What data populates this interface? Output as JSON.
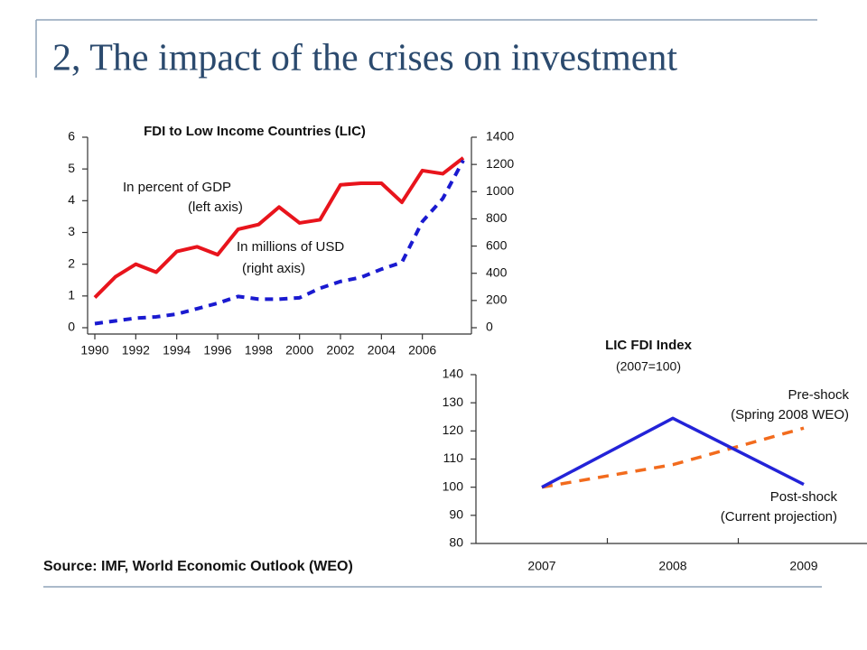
{
  "title": "2, The impact of the crises on investment",
  "source": "Source: IMF, World Economic Outlook (WEO)",
  "chart_data": [
    {
      "type": "line",
      "title": "FDI to Low Income Countries (LIC)",
      "x": [
        1990,
        1991,
        1992,
        1993,
        1994,
        1995,
        1996,
        1997,
        1998,
        1999,
        2000,
        2001,
        2002,
        2003,
        2004,
        2005,
        2006,
        2007,
        2008
      ],
      "xlim": [
        1990,
        2008
      ],
      "xticks": [
        1990,
        1992,
        1994,
        1996,
        1998,
        2000,
        2002,
        2004,
        2006
      ],
      "ylim": [
        0,
        6
      ],
      "yticks": [
        0,
        1,
        2,
        3,
        4,
        5,
        6
      ],
      "y2lim": [
        0,
        1400
      ],
      "y2ticks": [
        0,
        200,
        400,
        600,
        800,
        1000,
        1200,
        1400
      ],
      "series": [
        {
          "name": "In percent of GDP",
          "color": "#e8141c",
          "dashed": false,
          "values": [
            0.95,
            1.6,
            2.0,
            1.75,
            2.4,
            2.55,
            2.3,
            3.1,
            3.25,
            3.8,
            3.3,
            3.4,
            4.5,
            4.55,
            4.55,
            3.95,
            4.95,
            4.85,
            5.35
          ]
        },
        {
          "name": "In millions of USD",
          "color": "#1a1ad0",
          "dashed": true,
          "axis": "y2",
          "values": [
            30,
            50,
            70,
            80,
            100,
            140,
            180,
            230,
            210,
            210,
            220,
            290,
            340,
            370,
            430,
            480,
            780,
            950,
            1230
          ]
        }
      ],
      "annotations": [
        "(left axis)",
        "(right axis)"
      ]
    },
    {
      "type": "line",
      "title": "LIC FDI Index",
      "subtitle": "(2007=100)",
      "categories": [
        "2007",
        "2008",
        "2009"
      ],
      "ylim": [
        80,
        140
      ],
      "yticks": [
        80,
        90,
        100,
        110,
        120,
        130,
        140
      ],
      "series": [
        {
          "name": "Pre-shock",
          "color": "#f26b1d",
          "dashed": true,
          "values": [
            100,
            108,
            121
          ]
        },
        {
          "name": "Post-shock",
          "color": "#2323d8",
          "dashed": false,
          "values": [
            100,
            124.5,
            101
          ]
        }
      ],
      "annotations": [
        "(Spring 2008 WEO)",
        "(Current projection)"
      ]
    }
  ]
}
